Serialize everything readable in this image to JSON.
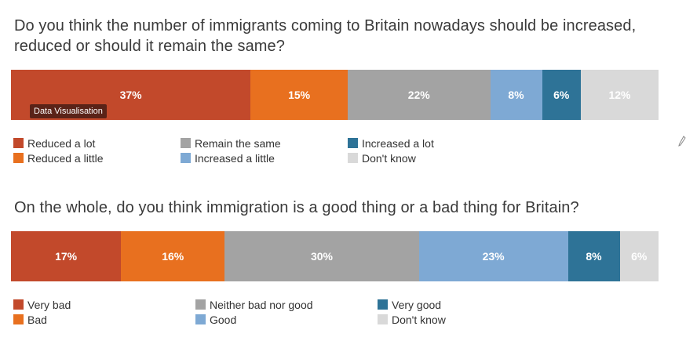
{
  "chart_data": [
    {
      "type": "bar",
      "orientation": "horizontal-stacked-100",
      "title": "Do you think the number of immigrants coming to Britain nowadays should be increased, reduced or should it remain the same?",
      "categories": [
        "Reduced a lot",
        "Reduced a little",
        "Remain the same",
        "Increased a little",
        "Increased a lot",
        "Don't know"
      ],
      "values": [
        37,
        15,
        22,
        8,
        6,
        12
      ],
      "labels": [
        "37%",
        "15%",
        "22%",
        "8%",
        "6%",
        "12%"
      ],
      "colors": [
        "#c2492b",
        "#e8701f",
        "#a3a3a3",
        "#7ea9d4",
        "#2e7397",
        "#d9d9d9"
      ],
      "legend": [
        {
          "label": "Reduced a lot",
          "color": "#c2492b"
        },
        {
          "label": "Reduced a little",
          "color": "#e8701f"
        },
        {
          "label": "Remain the same",
          "color": "#a3a3a3"
        },
        {
          "label": "Increased a little",
          "color": "#7ea9d4"
        },
        {
          "label": "Increased a lot",
          "color": "#2e7397"
        },
        {
          "label": "Don't know",
          "color": "#d9d9d9"
        }
      ]
    },
    {
      "type": "bar",
      "orientation": "horizontal-stacked-100",
      "title": "On the whole, do you think immigration is a good thing or a bad thing for Britain?",
      "categories": [
        "Very bad",
        "Bad",
        "Neither bad nor good",
        "Good",
        "Very good",
        "Don't know"
      ],
      "values": [
        17,
        16,
        30,
        23,
        8,
        6
      ],
      "labels": [
        "17%",
        "16%",
        "30%",
        "23%",
        "8%",
        "6%"
      ],
      "colors": [
        "#c2492b",
        "#e8701f",
        "#a3a3a3",
        "#7ea9d4",
        "#2e7397",
        "#d9d9d9"
      ],
      "legend": [
        {
          "label": "Very bad",
          "color": "#c2492b"
        },
        {
          "label": "Bad",
          "color": "#e8701f"
        },
        {
          "label": "Neither bad nor good",
          "color": "#a3a3a3"
        },
        {
          "label": "Good",
          "color": "#7ea9d4"
        },
        {
          "label": "Very good",
          "color": "#2e7397"
        },
        {
          "label": "Don't know",
          "color": "#d9d9d9"
        }
      ]
    }
  ],
  "tooltip": {
    "text": "Data Visualisation"
  }
}
